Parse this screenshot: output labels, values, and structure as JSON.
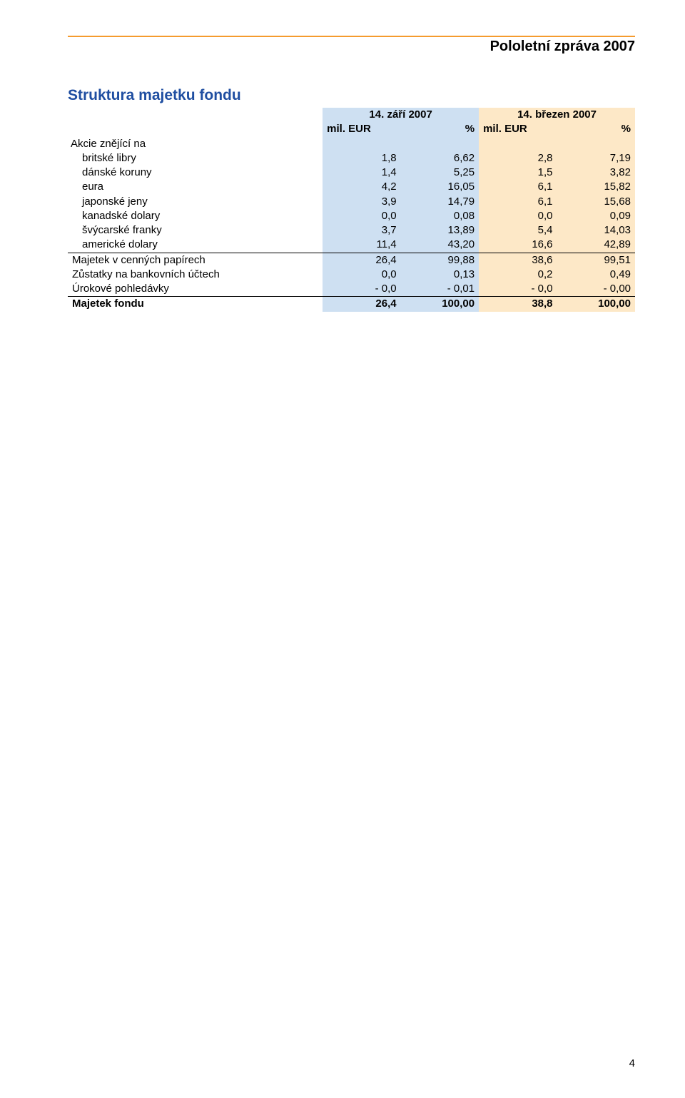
{
  "header": {
    "title": "Pololetní zpráva 2007",
    "line_color": "#f59b2e"
  },
  "section": {
    "title": "Struktura majetku fondu",
    "title_color": "#1f4ea1"
  },
  "table": {
    "date1": "14. září 2007",
    "date2": "14. březen 2007",
    "sub_eur": "mil. EUR",
    "sub_pct": "%",
    "date1_bg": "#cee0f2",
    "date2_bg": "#fde8c7",
    "num_col_width": 95,
    "label_col_width": 310,
    "group_label": "Akcie znějící na",
    "currency_rows": [
      {
        "label": "britské libry",
        "v1": "1,8",
        "p1": "6,62",
        "v2": "2,8",
        "p2": "7,19"
      },
      {
        "label": "dánské koruny",
        "v1": "1,4",
        "p1": "5,25",
        "v2": "1,5",
        "p2": "3,82"
      },
      {
        "label": "eura",
        "v1": "4,2",
        "p1": "16,05",
        "v2": "6,1",
        "p2": "15,82"
      },
      {
        "label": "japonské jeny",
        "v1": "3,9",
        "p1": "14,79",
        "v2": "6,1",
        "p2": "15,68"
      },
      {
        "label": "kanadské dolary",
        "v1": "0,0",
        "p1": "0,08",
        "v2": "0,0",
        "p2": "0,09"
      },
      {
        "label": "švýcarské franky",
        "v1": "3,7",
        "p1": "13,89",
        "v2": "5,4",
        "p2": "14,03"
      },
      {
        "label": "americké dolary",
        "v1": "11,4",
        "p1": "43,20",
        "v2": "16,6",
        "p2": "42,89"
      }
    ],
    "summary_rows": [
      {
        "label": "Majetek v cenných papírech",
        "v1": "26,4",
        "p1": "99,88",
        "v2": "38,6",
        "p2": "99,51"
      },
      {
        "label": "Zůstatky na bankovních účtech",
        "v1": "0,0",
        "p1": "0,13",
        "v2": "0,2",
        "p2": "0,49"
      },
      {
        "label": "Úrokové pohledávky",
        "v1": "- 0,0",
        "p1": "- 0,01",
        "v2": "- 0,0",
        "p2": "- 0,00"
      }
    ],
    "total_row": {
      "label": "Majetek fondu",
      "v1": "26,4",
      "p1": "100,00",
      "v2": "38,8",
      "p2": "100,00"
    }
  },
  "footer": {
    "page_number": "4"
  }
}
